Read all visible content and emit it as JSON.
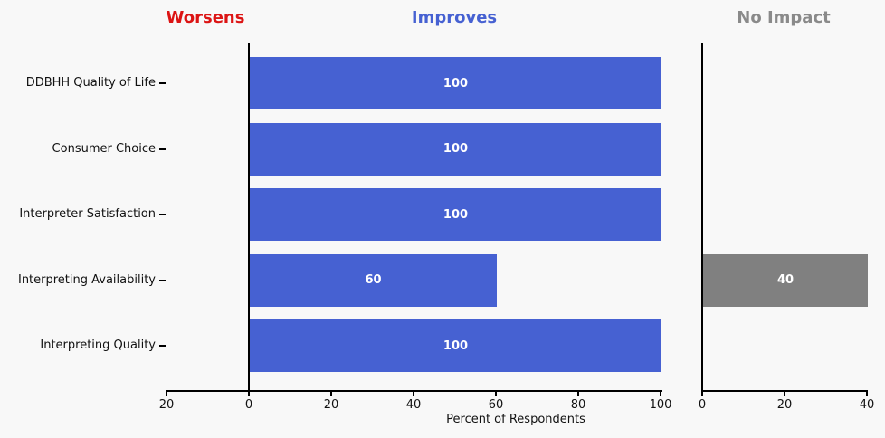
{
  "headers": {
    "worsens": "Worsens",
    "improves": "Improves",
    "no_impact": "No Impact"
  },
  "colors": {
    "background": "#f8f8f8",
    "worsens": "#dc1414",
    "improves": "#4661d2",
    "no_impact_header": "#8a8a8a",
    "no_impact_bar": "#808080",
    "axis": "#000000",
    "bar_value_text": "#ffffff"
  },
  "chart_data": {
    "type": "bar",
    "orientation": "horizontal",
    "title": "",
    "xlabel": "Percent of Respondents",
    "categories": [
      "DDBHH Quality of Life",
      "Consumer Choice",
      "Interpreter Satisfaction",
      "Interpreting Availability",
      "Interpreting Quality"
    ],
    "series": [
      {
        "name": "Worsens",
        "values": [
          0,
          0,
          0,
          0,
          0
        ],
        "direction": "left",
        "color": "#dc1414"
      },
      {
        "name": "Improves",
        "values": [
          100,
          100,
          100,
          60,
          100
        ],
        "direction": "right",
        "color": "#4661d2"
      },
      {
        "name": "No Impact",
        "values": [
          0,
          0,
          0,
          40,
          0
        ],
        "direction": "right",
        "color": "#808080"
      }
    ],
    "axes": {
      "main": {
        "range": [
          -20,
          100
        ],
        "tick_values": [
          -20,
          0,
          20,
          40,
          60,
          80,
          100
        ],
        "tick_labels": [
          "20",
          "0",
          "20",
          "40",
          "60",
          "80",
          "100"
        ]
      },
      "no_impact": {
        "range": [
          0,
          40
        ],
        "tick_values": [
          0,
          20,
          40
        ],
        "tick_labels": [
          "0",
          "20",
          "40"
        ]
      }
    },
    "bar_value_labels_shown": true,
    "legend": "none",
    "grid": false
  }
}
